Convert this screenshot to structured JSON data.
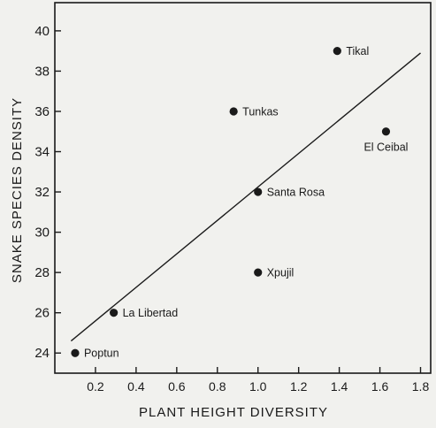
{
  "chart_data": {
    "type": "scatter",
    "xlabel": "PLANT HEIGHT DIVERSITY",
    "ylabel": "SNAKE SPECIES DENSITY",
    "xlim": [
      0.0,
      1.85
    ],
    "ylim": [
      23.0,
      41.4
    ],
    "x_ticks": [
      0.2,
      0.4,
      0.6,
      0.8,
      1.0,
      1.2,
      1.4,
      1.6,
      1.8
    ],
    "x_tick_labels": [
      "0.2",
      "0.4",
      "0.6",
      "0.8",
      "1.0",
      "1.2",
      "1.4",
      "1.6",
      "1.8"
    ],
    "y_ticks": [
      24,
      26,
      28,
      30,
      32,
      34,
      36,
      38,
      40
    ],
    "y_tick_labels": [
      "24",
      "26",
      "28",
      "30",
      "32",
      "34",
      "36",
      "38",
      "40"
    ],
    "grid": false,
    "points": [
      {
        "label": "Poptun",
        "x": 0.1,
        "y": 24,
        "label_pos": "right"
      },
      {
        "label": "La Libertad",
        "x": 0.29,
        "y": 26,
        "label_pos": "right"
      },
      {
        "label": "Tunkas",
        "x": 0.88,
        "y": 36,
        "label_pos": "right"
      },
      {
        "label": "Santa Rosa",
        "x": 1.0,
        "y": 32,
        "label_pos": "right"
      },
      {
        "label": "Xpujil",
        "x": 1.0,
        "y": 28,
        "label_pos": "right"
      },
      {
        "label": "Tikal",
        "x": 1.39,
        "y": 39,
        "label_pos": "right"
      },
      {
        "label": "El Ceibal",
        "x": 1.63,
        "y": 35,
        "label_pos": "below"
      }
    ],
    "regression_line": {
      "x": [
        0.08,
        1.8
      ],
      "y": [
        24.6,
        38.9
      ]
    },
    "colors": {
      "background": "#f1f1ee",
      "ink": "#1a1a1a"
    }
  }
}
